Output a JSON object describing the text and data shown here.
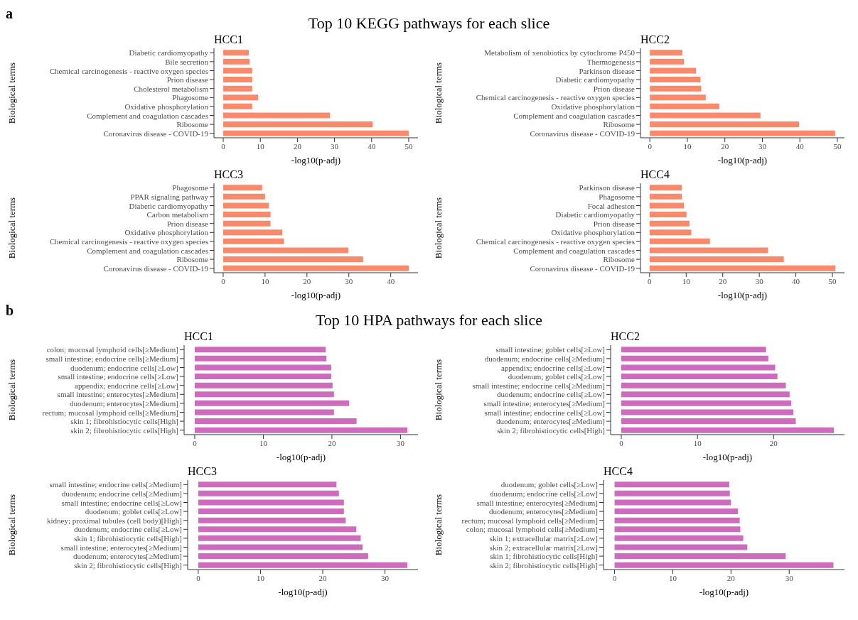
{
  "chart_data": [
    {
      "type": "bar",
      "orientation": "horizontal",
      "title": "HCC1",
      "xlabel": "-log10(p-adj)",
      "ylabel": "Biological terms",
      "annotations": [
        "a",
        "Top 10 KEGG pathways for each slice"
      ],
      "color": "#f8896a",
      "categories": [
        "Diabetic cardiomyopathy",
        "Bile secretion",
        "Chemical carcinogenesis - reactive oxygen species",
        "Prion disease",
        "Cholesterol metabolism",
        "Phagosome",
        "Oxidative phosphorylation",
        "Complement and coagulation cascades",
        "Ribosome",
        "Coronavirus disease - COVID-19"
      ],
      "values": [
        6.9,
        7.1,
        7.8,
        7.8,
        7.8,
        9.4,
        7.8,
        28.8,
        40.3,
        50.0
      ],
      "xlim": [
        -2.5,
        52.5
      ],
      "xticks": [
        0,
        10,
        20,
        30,
        40,
        50
      ]
    },
    {
      "type": "bar",
      "orientation": "horizontal",
      "title": "HCC2",
      "xlabel": "-log10(p-adj)",
      "ylabel": "Biological terms",
      "color": "#f8896a",
      "categories": [
        "Metabolism of xenobiotics by cytochrome P450",
        "Thermogenesis",
        "Parkinson disease",
        "Diabetic cardiomyopathy",
        "Prion disease",
        "Chemical carcinogenesis - reactive oxygen species",
        "Oxidative phosphorylation",
        "Complement and coagulation cascades",
        "Ribosome",
        "Coronavirus disease - COVID-19"
      ],
      "values": [
        8.7,
        9.1,
        12.3,
        13.5,
        13.7,
        14.9,
        18.5,
        29.5,
        39.8,
        49.4
      ],
      "xlim": [
        -2.5,
        51.9
      ],
      "xticks": [
        0,
        10,
        20,
        30,
        40,
        50
      ]
    },
    {
      "type": "bar",
      "orientation": "horizontal",
      "title": "HCC3",
      "xlabel": "-log10(p-adj)",
      "ylabel": "Biological terms",
      "color": "#f8896a",
      "categories": [
        "Phagosome",
        "PPAR signaling pathway",
        "Diabetic cardiomyopathy",
        "Carbon metabolism",
        "Prion disease",
        "Oxidative phosphorylation",
        "Chemical carcinogenesis - reactive oxygen species",
        "Complement and coagulation cascades",
        "Ribosome",
        "Coronavirus disease - COVID-19"
      ],
      "values": [
        9.3,
        10.0,
        10.9,
        11.3,
        11.3,
        14.1,
        14.5,
        29.9,
        33.4,
        44.3
      ],
      "xlim": [
        -2.2,
        46.5
      ],
      "xticks": [
        0,
        10,
        20,
        30,
        40
      ]
    },
    {
      "type": "bar",
      "orientation": "horizontal",
      "title": "HCC4",
      "xlabel": "-log10(p-adj)",
      "ylabel": "Biological terms",
      "color": "#f8896a",
      "categories": [
        "Parkinson disease",
        "Phagosome",
        "Focal adhesion",
        "Diabetic cardiomyopathy",
        "Prion disease",
        "Oxidative phosphorylation",
        "Chemical carcinogenesis - reactive oxygen species",
        "Complement and coagulation cascades",
        "Ribosome",
        "Coronavirus disease - COVID-19"
      ],
      "values": [
        8.8,
        8.8,
        9.4,
        10.1,
        10.9,
        11.4,
        16.5,
        32.4,
        36.7,
        50.8
      ],
      "xlim": [
        -2.5,
        53.3
      ],
      "xticks": [
        0,
        10,
        20,
        30,
        40,
        50
      ]
    },
    {
      "type": "bar",
      "orientation": "horizontal",
      "title": "HCC1",
      "xlabel": "-log10(p-adj)",
      "ylabel": "Biological terms",
      "annotations": [
        "b",
        "Top 10 HPA pathways for each slice"
      ],
      "color": "#cd6bbd",
      "categories": [
        "colon; mucosal lymphoid cells[≥Medium]",
        "small intestine; endocrine cells[≥Medium]",
        "duodenum; endocrine cells[≥Low]",
        "small intestine; endocrine cells[≥Low]",
        "appendix; endocrine cells[≥Low]",
        "small intestine; enterocytes[≥Medium]",
        "duodenum; enterocytes[≥Medium]",
        "rectum; mucosal lymphoid cells[≥Medium]",
        "skin 1; fibrohistiocytic cells[High]",
        "skin 2; fibrohistiocytic cells[High]"
      ],
      "values": [
        19.1,
        19.2,
        19.9,
        19.9,
        20.1,
        20.3,
        22.5,
        20.3,
        23.6,
        31.0
      ],
      "xlim": [
        -1.55,
        32.55
      ],
      "xticks": [
        0,
        10,
        20,
        30
      ]
    },
    {
      "type": "bar",
      "orientation": "horizontal",
      "title": "HCC2",
      "xlabel": "-log10(p-adj)",
      "ylabel": "Biological terms",
      "color": "#cd6bbd",
      "categories": [
        "small intestine; goblet cells[≥Low]",
        "duodenum; endocrine cells[≥Medium]",
        "appendix; endocrine cells[≥Low]",
        "duodenum; goblet cells[≥Low]",
        "small intestine; endocrine cells[≥Medium]",
        "duodenum; endocrine cells[≥Low]",
        "small intestine; enterocytes[≥Medium]",
        "small intestine; endocrine cells[≥Low]",
        "duodenum; enterocytes[≥Medium]",
        "skin 2; fibrohistiocytic cells[High]"
      ],
      "values": [
        19.0,
        19.3,
        20.2,
        20.5,
        21.6,
        22.1,
        22.3,
        22.6,
        22.9,
        27.9
      ],
      "xlim": [
        -1.4,
        29.3
      ],
      "xticks": [
        0,
        10,
        20
      ]
    },
    {
      "type": "bar",
      "orientation": "horizontal",
      "title": "HCC3",
      "xlabel": "-log10(p-adj)",
      "ylabel": "Biological terms",
      "color": "#cd6bbd",
      "categories": [
        "small intestine; endocrine cells[≥Medium]",
        "duodenum; endocrine cells[≥Medium]",
        "small intestine; endocrine cells[≥Low]",
        "duodenum; goblet cells[≥Low]",
        "kidney; proximal tubules (cell body)[High]",
        "duodenum; endocrine cells[≥Low]",
        "skin 1; fibrohistiocytic cells[High]",
        "small intestine; enterocytes[≥Medium]",
        "duodenum; enterocytes[≥Medium]",
        "skin 2; fibrohistiocytic cells[High]"
      ],
      "values": [
        22.2,
        22.6,
        23.4,
        23.4,
        23.7,
        25.4,
        26.1,
        26.4,
        27.3,
        33.6
      ],
      "xlim": [
        -1.7,
        35.3
      ],
      "xticks": [
        0,
        10,
        20,
        30
      ]
    },
    {
      "type": "bar",
      "orientation": "horizontal",
      "title": "HCC4",
      "xlabel": "-log10(p-adj)",
      "ylabel": "Biological terms",
      "color": "#cd6bbd",
      "categories": [
        "duodenum; goblet cells[≥Low]",
        "duodenum; endocrine cells[≥Low]",
        "small intestine; enterocytes[≥Medium]",
        "duodenum; enterocytes[≥Medium]",
        "rectum; mucosal lymphoid cells[≥Medium]",
        "colon; mucosal lymphoid cells[≥Medium]",
        "skin 1; extracellular matrix[≥Low]",
        "skin 2; extracellular matrix[≥Low]",
        "skin 1; fibrohistiocytic cells[High]",
        "skin 2; fibrohistiocytic cells[High]"
      ],
      "values": [
        19.7,
        19.8,
        20.0,
        21.2,
        21.5,
        21.6,
        22.1,
        22.8,
        29.4,
        37.6
      ],
      "xlim": [
        -1.9,
        39.5
      ],
      "xticks": [
        0,
        10,
        20,
        30
      ]
    }
  ]
}
